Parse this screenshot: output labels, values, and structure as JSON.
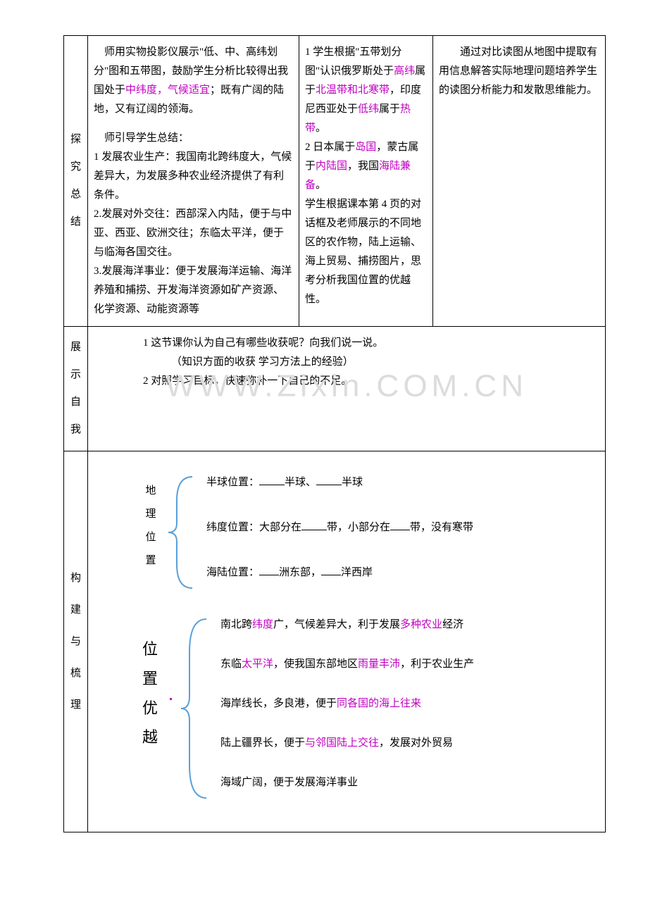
{
  "row1": {
    "side": "探究总结",
    "teacher": {
      "p1a": "师用实物投影仪展示\"低、中、高纬划分\"图和五带图，鼓励学生分析比较得出我国处于",
      "p1b_hl": "中纬度，气候适宜",
      "p1c": "；既有广阔的陆地，又有辽阔的领海。",
      "lead": "师引导学生总结：",
      "p2": "1 发展农业生产：我国南北跨纬度大，气候差异大，为发展多种农业经济提供了有利条件。",
      "p3": "2.发展对外交往：西部深入内陆，便于与中亚、西亚、欧洲交往；东临太平洋，便于与临海各国交往。",
      "p4": "3.发展海洋事业：便于发展海洋运输、海洋养殖和捕捞、开发海洋资源如矿产资源、化学资源、动能资源等"
    },
    "student": {
      "s1a": "1 学生根据\"五带划分图\"认识俄罗斯处于",
      "s1b_hl": "高纬",
      "s1c": "属于",
      "s1d_hl": "北温带和北寒带",
      "s1e": "，印度尼西亚处于",
      "s1f_hl": "低纬",
      "s1g": "属于",
      "s1h_hl": "热带",
      "s1i": "。",
      "s2a": "2 日本属于",
      "s2b_hl": "岛国",
      "s2c": "，蒙古属于",
      "s2d_hl": "内陆国",
      "s2e": "，我国",
      "s2f_hl": "海陆兼备",
      "s2g": "。",
      "s3": "学生根据课本第 4 页的对话框及老师展示的不同地区的农作物，陆上运输、海上贸易、捕捞图片，思考分析我国位置的优越性。"
    },
    "note": "通过对比读图从地图中提取有用信息解答实际地理问题培养学生的读图分析能力和发散思维能力。"
  },
  "row2": {
    "side": "展示自我",
    "line1": "1 这节课你认为自己有哪些收获呢？向我们说一说。",
    "line2": "（知识方面的收获       学习方法上的经验）",
    "line3": "2 对照学习目标，快速弥补一下自己的不足。"
  },
  "row3": {
    "side": "构建与梳理",
    "v1": "地理位置",
    "v2": "位置优越",
    "b1a": "半球位置：",
    "b1b": "半球、",
    "b1c": "半球",
    "b2a": "纬度位置：大部分在",
    "b2b": "带，小部分在",
    "b2c": "带，没有寒带",
    "b3a": "海陆位置：",
    "b3b": "洲东部，",
    "b3c": "洋西岸",
    "c1a": "南北跨",
    "c1b_hl": "纬度",
    "c1c": "广，气候差异大，利于发展",
    "c1d_hl": "多种农业",
    "c1e": "经济",
    "c2a": "东临",
    "c2b_hl": "太平洋",
    "c2c": "，使我国东部地区",
    "c2d_hl": "雨量丰沛",
    "c2e": "，利于农业生产",
    "c3a": "海岸线长，多良港，便于",
    "c3b_hl": "同各国的海上往来",
    "c4a": "陆上疆界长，便于",
    "c4b_hl": "与邻国陆上交往",
    "c4c": "，发展对外贸易",
    "c5": "海域广阔，便于发展海洋事业"
  },
  "watermark": "WWW.Zixin.COM.CN",
  "colors": {
    "highlight": "#c000c0",
    "brace": "#5aa0d8",
    "wm": "#dcdcdc",
    "border": "#000000",
    "text": "#000000",
    "bg": "#ffffff"
  }
}
